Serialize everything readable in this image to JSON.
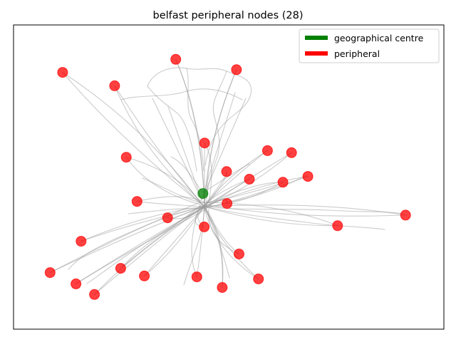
{
  "chart_data": {
    "type": "scatter",
    "title": "belfast peripheral nodes (28)",
    "xlabel": "",
    "ylabel": "",
    "axis_ticks": "hidden",
    "grid": false,
    "legend_position": "top-right",
    "xlim": [
      0,
      1
    ],
    "ylim": [
      0,
      1
    ],
    "legend": [
      {
        "label": "geographical centre",
        "color": "#008000"
      },
      {
        "label": "peripheral",
        "color": "#ff0000"
      }
    ],
    "series": [
      {
        "name": "geographical centre",
        "color": "#008000",
        "points": [
          {
            "x": 0.44,
            "y": 0.446
          }
        ]
      },
      {
        "name": "peripheral",
        "color": "#ff0000",
        "points": [
          {
            "x": 0.114,
            "y": 0.844
          },
          {
            "x": 0.235,
            "y": 0.8
          },
          {
            "x": 0.377,
            "y": 0.887
          },
          {
            "x": 0.518,
            "y": 0.853
          },
          {
            "x": 0.444,
            "y": 0.612
          },
          {
            "x": 0.262,
            "y": 0.565
          },
          {
            "x": 0.59,
            "y": 0.587
          },
          {
            "x": 0.646,
            "y": 0.58
          },
          {
            "x": 0.495,
            "y": 0.518
          },
          {
            "x": 0.548,
            "y": 0.493
          },
          {
            "x": 0.626,
            "y": 0.483
          },
          {
            "x": 0.684,
            "y": 0.502
          },
          {
            "x": 0.287,
            "y": 0.42
          },
          {
            "x": 0.358,
            "y": 0.366
          },
          {
            "x": 0.496,
            "y": 0.413
          },
          {
            "x": 0.443,
            "y": 0.336
          },
          {
            "x": 0.753,
            "y": 0.34
          },
          {
            "x": 0.911,
            "y": 0.375
          },
          {
            "x": 0.157,
            "y": 0.289
          },
          {
            "x": 0.524,
            "y": 0.247
          },
          {
            "x": 0.085,
            "y": 0.186
          },
          {
            "x": 0.249,
            "y": 0.2
          },
          {
            "x": 0.304,
            "y": 0.175
          },
          {
            "x": 0.145,
            "y": 0.149
          },
          {
            "x": 0.188,
            "y": 0.114
          },
          {
            "x": 0.426,
            "y": 0.172
          },
          {
            "x": 0.485,
            "y": 0.137
          },
          {
            "x": 0.569,
            "y": 0.165
          }
        ]
      }
    ]
  }
}
